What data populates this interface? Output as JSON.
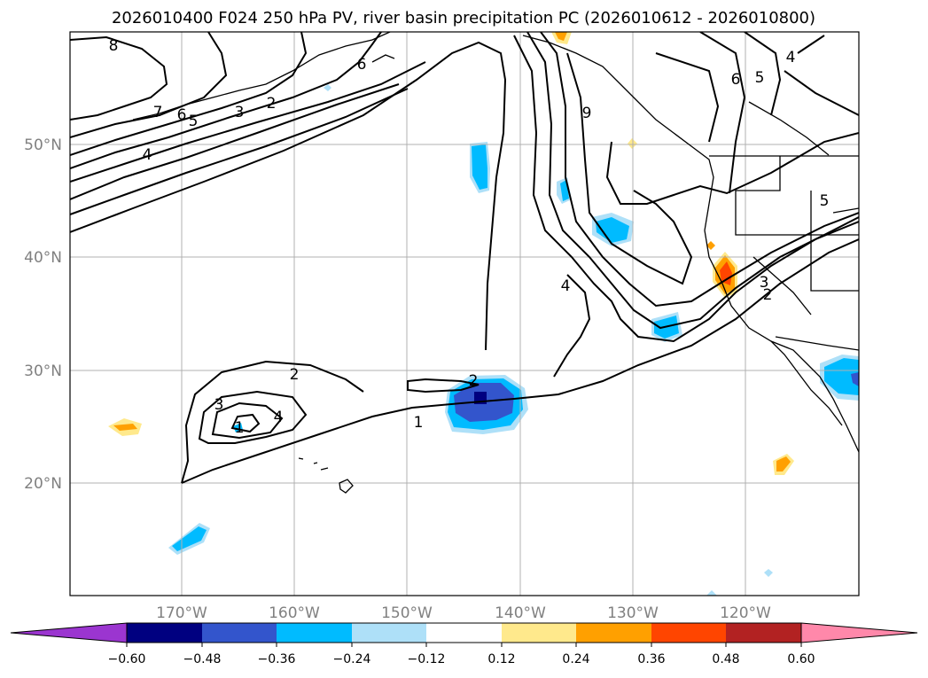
{
  "title": "2026010400 F024 250 hPa PV, river basin precipitation PC (2026010612 - 2026010800)",
  "map": {
    "longitude_labels": [
      "170°W",
      "160°W",
      "150°W",
      "140°W",
      "130°W",
      "120°W"
    ],
    "latitude_labels": [
      "50°N",
      "40°N",
      "30°N",
      "20°N"
    ],
    "gridlines": true,
    "pv_contour_labels": [
      "8",
      "7",
      "6",
      "5",
      "3",
      "2",
      "4",
      "6",
      "9",
      "6",
      "5",
      "4",
      "4",
      "2",
      "3",
      "2",
      "3",
      "4",
      "1",
      "2",
      "1",
      "5"
    ]
  },
  "colorbar": {
    "tick_labels": [
      "−0.60",
      "−0.48",
      "−0.36",
      "−0.24",
      "−0.12",
      "0.12",
      "0.24",
      "0.36",
      "0.48",
      "0.60"
    ],
    "colors": [
      "#9b35d0",
      "#000080",
      "#3355cc",
      "#00bbff",
      "#aee0f8",
      "#ffffff",
      "#ffe98c",
      "#ffa000",
      "#ff4500",
      "#b22222",
      "#ff88aa"
    ]
  }
}
